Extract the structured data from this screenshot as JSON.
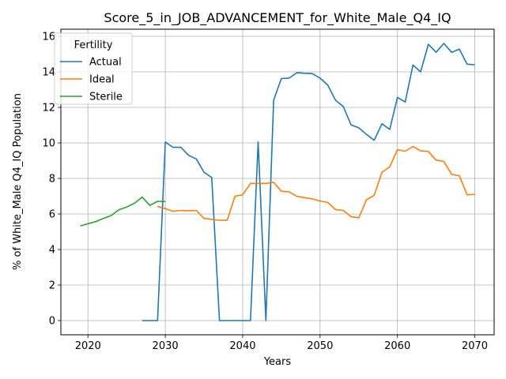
{
  "chart_data": {
    "type": "line",
    "title": "Score_5_in_JOB_ADVANCEMENT_for_White_Male_Q4_IQ",
    "xlabel": "Years",
    "ylabel": "% of White_Male Q4_IQ Population",
    "xlim": [
      2016.5,
      2072.5
    ],
    "ylim": [
      -0.8,
      16.4
    ],
    "xticks": [
      2020,
      2030,
      2040,
      2050,
      2060,
      2070
    ],
    "yticks": [
      0,
      2,
      4,
      6,
      8,
      10,
      12,
      14,
      16
    ],
    "grid": true,
    "legend": {
      "title": "Fertility",
      "placement": "top-left"
    },
    "series": [
      {
        "name": "Actual",
        "color": "#1f77b4",
        "x": [
          2027,
          2028,
          2029,
          2030,
          2031,
          2032,
          2033,
          2034,
          2035,
          2036,
          2037,
          2038,
          2039,
          2040,
          2041,
          2042,
          2043,
          2044,
          2045,
          2046,
          2047,
          2048,
          2049,
          2050,
          2051,
          2052,
          2053,
          2054,
          2055,
          2056,
          2057,
          2058,
          2059,
          2060,
          2061,
          2062,
          2063,
          2064,
          2065,
          2066,
          2067,
          2068,
          2069,
          2070
        ],
        "y": [
          0,
          0,
          0,
          10.05,
          9.75,
          9.75,
          9.3,
          9.1,
          8.35,
          8.05,
          0,
          0,
          0,
          0,
          0,
          10.05,
          0,
          12.4,
          13.62,
          13.65,
          13.95,
          13.92,
          13.9,
          13.65,
          13.25,
          12.4,
          12.05,
          11.02,
          10.85,
          10.48,
          10.15,
          11.08,
          10.76,
          12.56,
          12.3,
          14.38,
          14.0,
          15.55,
          15.1,
          15.6,
          15.1,
          15.28,
          14.43,
          14.4
        ]
      },
      {
        "name": "Ideal",
        "color": "#ff7f0e",
        "x": [
          2029,
          2030,
          2031,
          2032,
          2033,
          2034,
          2035,
          2036,
          2037,
          2038,
          2039,
          2040,
          2041,
          2042,
          2043,
          2044,
          2045,
          2046,
          2047,
          2048,
          2049,
          2050,
          2051,
          2052,
          2053,
          2054,
          2055,
          2056,
          2057,
          2058,
          2059,
          2060,
          2061,
          2062,
          2063,
          2064,
          2065,
          2066,
          2067,
          2068,
          2069,
          2070
        ],
        "y": [
          6.43,
          6.3,
          6.15,
          6.2,
          6.18,
          6.2,
          5.75,
          5.7,
          5.65,
          5.65,
          7.0,
          7.08,
          7.72,
          7.72,
          7.72,
          7.78,
          7.28,
          7.25,
          6.99,
          6.92,
          6.85,
          6.73,
          6.65,
          6.25,
          6.2,
          5.85,
          5.78,
          6.8,
          7.05,
          8.35,
          8.65,
          9.62,
          9.53,
          9.8,
          9.55,
          9.52,
          9.03,
          8.96,
          8.23,
          8.15,
          7.08,
          7.1
        ]
      },
      {
        "name": "Sterile",
        "color": "#2ca02c",
        "x": [
          2019,
          2020,
          2021,
          2022,
          2023,
          2024,
          2025,
          2026,
          2027,
          2028,
          2029,
          2030
        ],
        "y": [
          5.33,
          5.45,
          5.57,
          5.75,
          5.91,
          6.24,
          6.39,
          6.6,
          6.95,
          6.48,
          6.71,
          6.7
        ]
      }
    ]
  }
}
